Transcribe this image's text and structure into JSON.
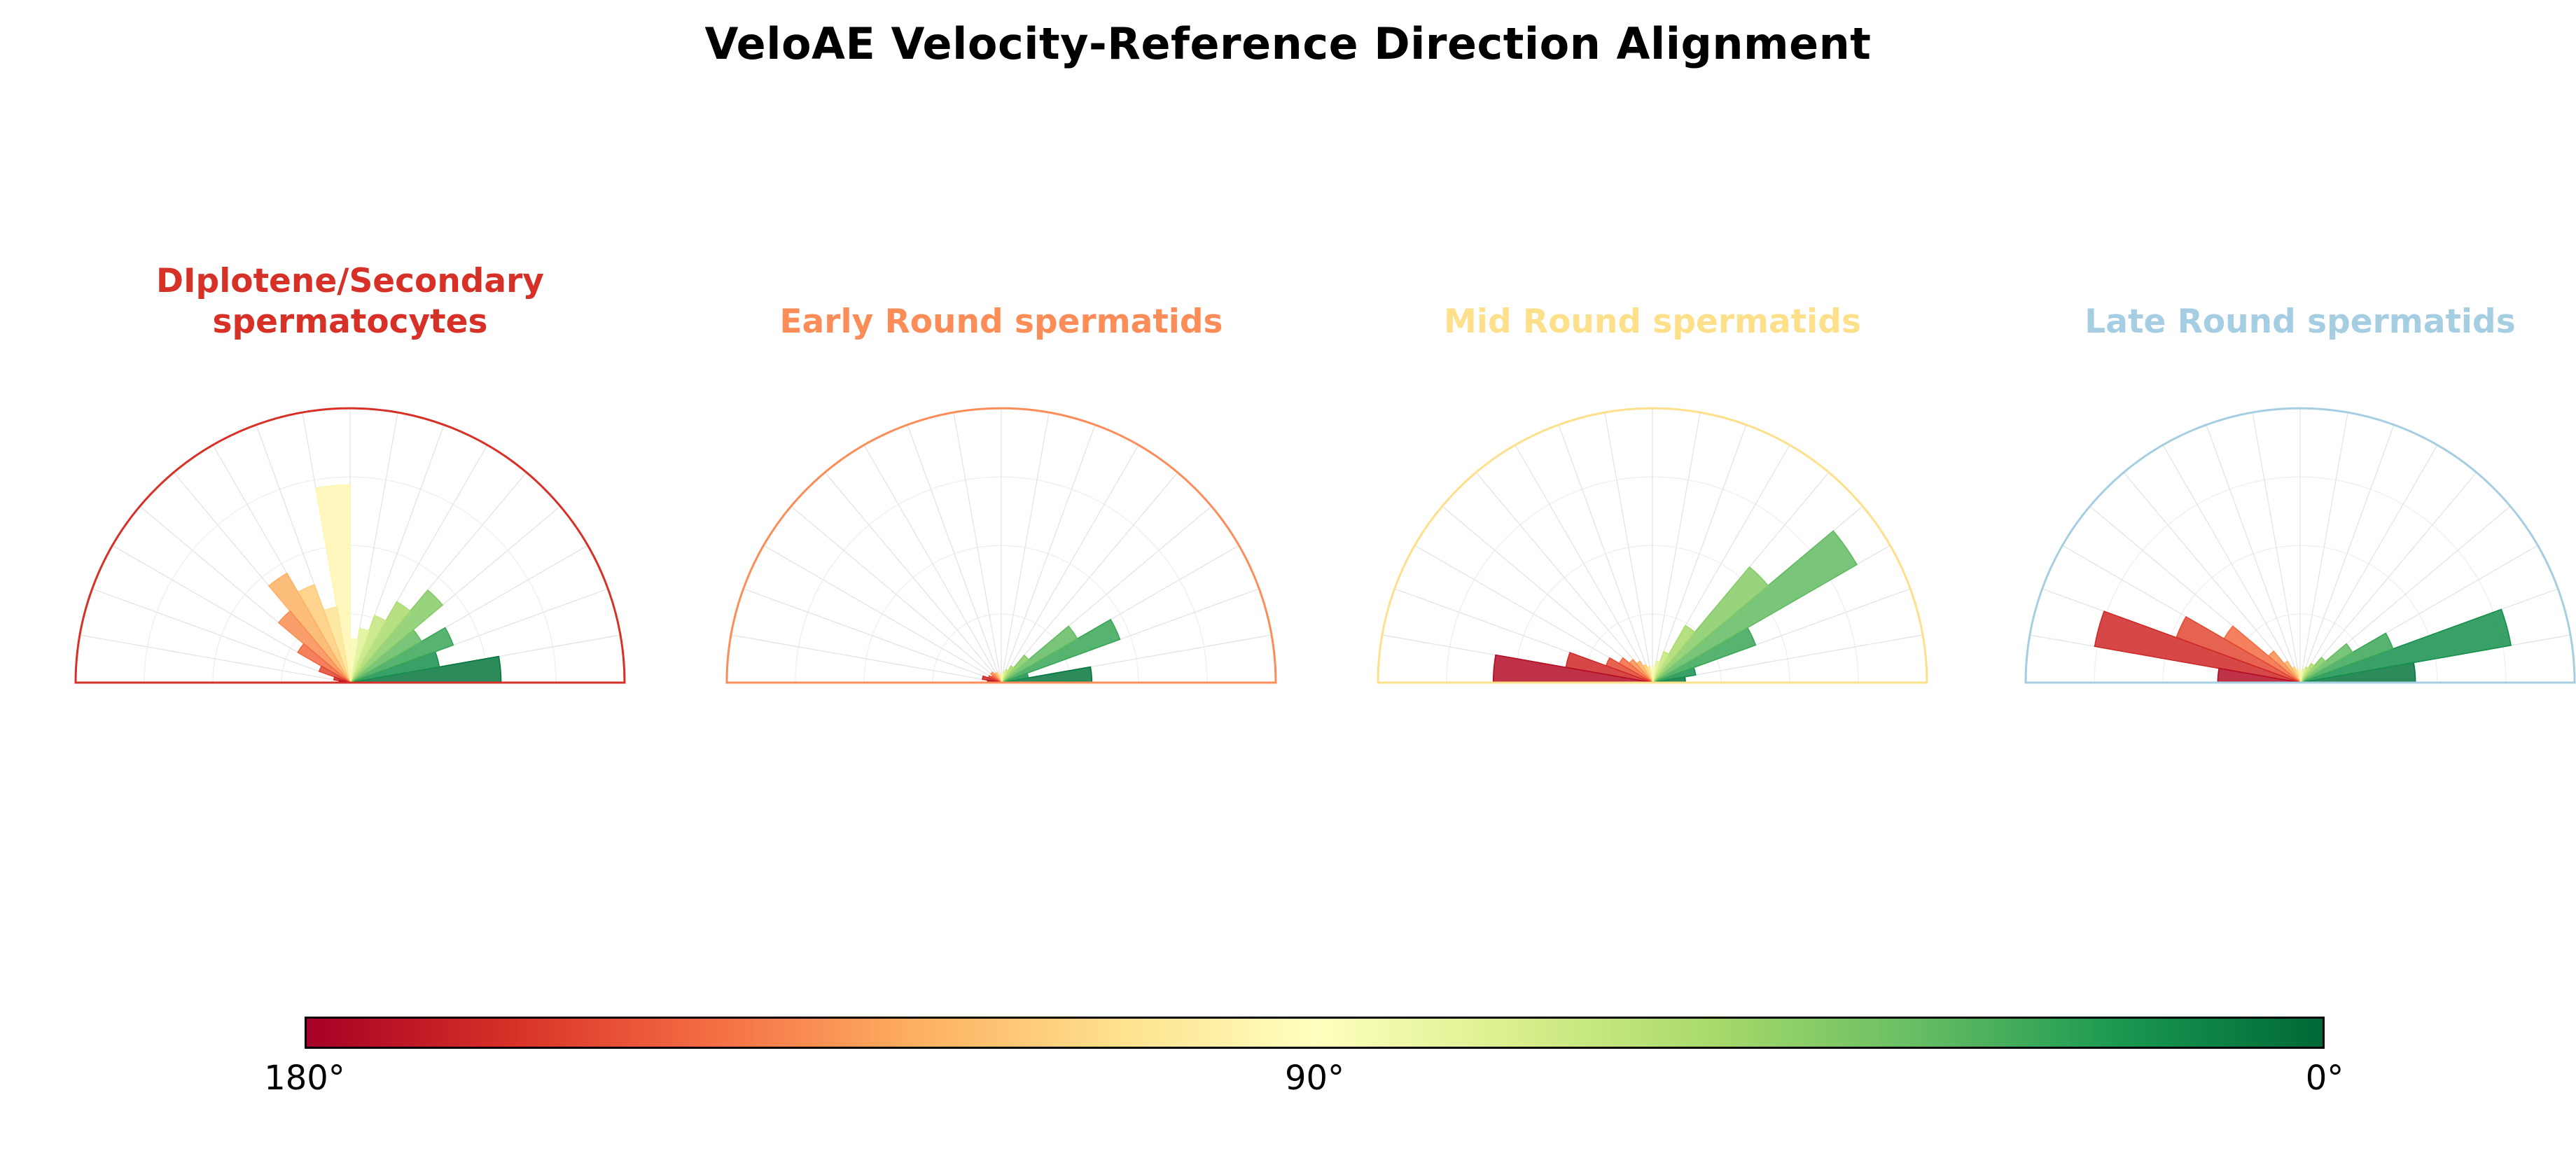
{
  "title": "VeloAE Velocity-Reference Direction Alignment",
  "chart_data": {
    "type": "polar-histogram",
    "title": "VeloAE Velocity-Reference Direction Alignment",
    "angle_range_degrees": [
      0,
      180
    ],
    "bin_width_degrees": 10,
    "radial_range": [
      0,
      1
    ],
    "grid": true,
    "colormap": {
      "name": "RdYlGn-by-angle (180deg=red, 0deg=green)",
      "stops": [
        "#a50026",
        "#d73027",
        "#f46d43",
        "#fdae61",
        "#fee08b",
        "#ffffbf",
        "#d9ef8b",
        "#a6d96a",
        "#66bd63",
        "#1a9850",
        "#006837"
      ]
    },
    "panels": [
      {
        "title": "DIplotene/Secondary\nspermatocytes",
        "color": "#d73027",
        "bin_start_degrees": [
          0,
          10,
          20,
          30,
          40,
          50,
          60,
          70,
          80,
          90,
          100,
          110,
          120,
          130,
          140,
          150,
          160,
          170
        ],
        "values": [
          0.55,
          0.33,
          0.4,
          0.3,
          0.44,
          0.34,
          0.26,
          0.2,
          0.16,
          0.72,
          0.28,
          0.38,
          0.46,
          0.34,
          0.22,
          0.12,
          0.06,
          0.04
        ]
      },
      {
        "title": "Early Round spermatids",
        "color": "#fc8d59",
        "bin_start_degrees": [
          0,
          10,
          20,
          30,
          40,
          50,
          60,
          70,
          80,
          90,
          100,
          110,
          120,
          130,
          140,
          150,
          160,
          170
        ],
        "values": [
          0.33,
          0.1,
          0.46,
          0.32,
          0.13,
          0.07,
          0.05,
          0.04,
          0.03,
          0.03,
          0.03,
          0.04,
          0.04,
          0.05,
          0.04,
          0.05,
          0.07,
          0.05
        ]
      },
      {
        "title": "Mid Round spermatids",
        "color": "#fee08b",
        "bin_start_degrees": [
          0,
          10,
          20,
          30,
          40,
          50,
          60,
          70,
          80,
          90,
          100,
          110,
          120,
          130,
          140,
          150,
          160,
          170
        ],
        "values": [
          0.12,
          0.16,
          0.4,
          0.86,
          0.55,
          0.24,
          0.12,
          0.08,
          0.06,
          0.05,
          0.06,
          0.07,
          0.09,
          0.11,
          0.14,
          0.18,
          0.32,
          0.58
        ]
      },
      {
        "title": "Late Round spermatids",
        "color": "#a6cee3",
        "bin_start_degrees": [
          0,
          10,
          20,
          30,
          40,
          50,
          60,
          70,
          80,
          90,
          100,
          110,
          120,
          130,
          140,
          150,
          160,
          170
        ],
        "values": [
          0.42,
          0.78,
          0.36,
          0.22,
          0.12,
          0.08,
          0.06,
          0.05,
          0.04,
          0.04,
          0.05,
          0.06,
          0.09,
          0.15,
          0.32,
          0.48,
          0.76,
          0.3
        ]
      }
    ],
    "colorbar": {
      "stops": [
        "#a50026",
        "#d73027",
        "#f46d43",
        "#fdae61",
        "#fee08b",
        "#ffffbf",
        "#d9ef8b",
        "#a6d96a",
        "#66bd63",
        "#1a9850",
        "#006837"
      ],
      "border_color": "#000000",
      "labels": [
        {
          "text": "180°",
          "position": 0
        },
        {
          "text": "90°",
          "position": 0.5
        },
        {
          "text": "0°",
          "position": 1
        }
      ]
    }
  }
}
